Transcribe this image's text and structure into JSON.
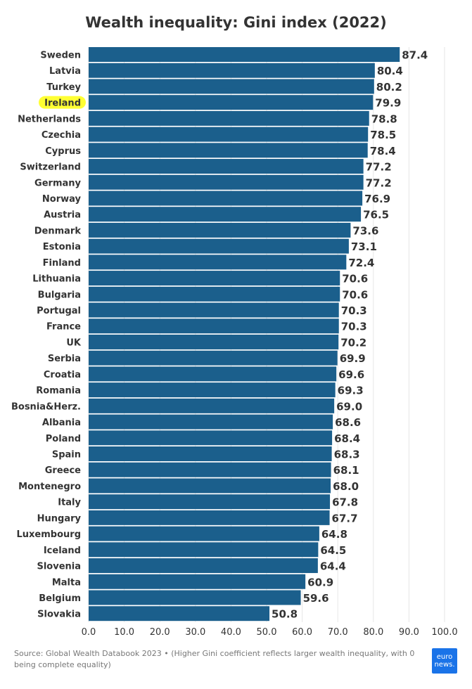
{
  "chart_data": {
    "type": "bar",
    "orientation": "horizontal",
    "title": "Wealth inequality: Gini index (2022)",
    "categories": [
      "Sweden",
      "Latvia",
      "Turkey",
      "Ireland",
      "Netherlands",
      "Czechia",
      "Cyprus",
      "Switzerland",
      "Germany",
      "Norway",
      "Austria",
      "Denmark",
      "Estonia",
      "Finland",
      "Lithuania",
      "Bulgaria",
      "Portugal",
      "France",
      "UK",
      "Serbia",
      "Croatia",
      "Romania",
      "Bosnia&Herz.",
      "Albania",
      "Poland",
      "Spain",
      "Greece",
      "Montenegro",
      "Italy",
      "Hungary",
      "Luxembourg",
      "Iceland",
      "Slovenia",
      "Malta",
      "Belgium",
      "Slovakia"
    ],
    "values": [
      87.4,
      80.4,
      80.2,
      79.9,
      78.8,
      78.5,
      78.4,
      77.2,
      77.2,
      76.9,
      76.5,
      73.6,
      73.1,
      72.4,
      70.6,
      70.6,
      70.3,
      70.3,
      70.2,
      69.9,
      69.6,
      69.3,
      69.0,
      68.6,
      68.4,
      68.3,
      68.1,
      68.0,
      67.8,
      67.7,
      64.8,
      64.5,
      64.4,
      60.9,
      59.6,
      50.8
    ],
    "value_labels": [
      "87.4",
      "80.4",
      "80.2",
      "79.9",
      "78.8",
      "78.5",
      "78.4",
      "77.2",
      "77.2",
      "76.9",
      "76.5",
      "73.6",
      "73.1",
      "72.4",
      "70.6",
      "70.6",
      "70.3",
      "70.3",
      "70.2",
      "69.9",
      "69.6",
      "69.3",
      "69.0",
      "68.6",
      "68.4",
      "68.3",
      "68.1",
      "68.0",
      "67.8",
      "67.7",
      "64.8",
      "64.5",
      "64.4",
      "60.9",
      "59.6",
      "50.8"
    ],
    "highlighted_category": "Ireland",
    "xlim": [
      0,
      100
    ],
    "x_ticks": [
      "0.0",
      "10.0",
      "20.0",
      "30.0",
      "40.0",
      "50.0",
      "60.0",
      "70.0",
      "80.0",
      "90.0",
      "100.0"
    ],
    "grid": true,
    "colors": {
      "bar": "#1b5f8c",
      "highlight": "#ffff33",
      "grid": "#e6e6e6"
    }
  },
  "footer": {
    "source": "Source: Global Wealth Databook 2023 • (Higher Gini coefficient reflects larger wealth inequality, with 0 being complete equality)"
  },
  "logo": {
    "line1": "euro",
    "line2": "news."
  }
}
